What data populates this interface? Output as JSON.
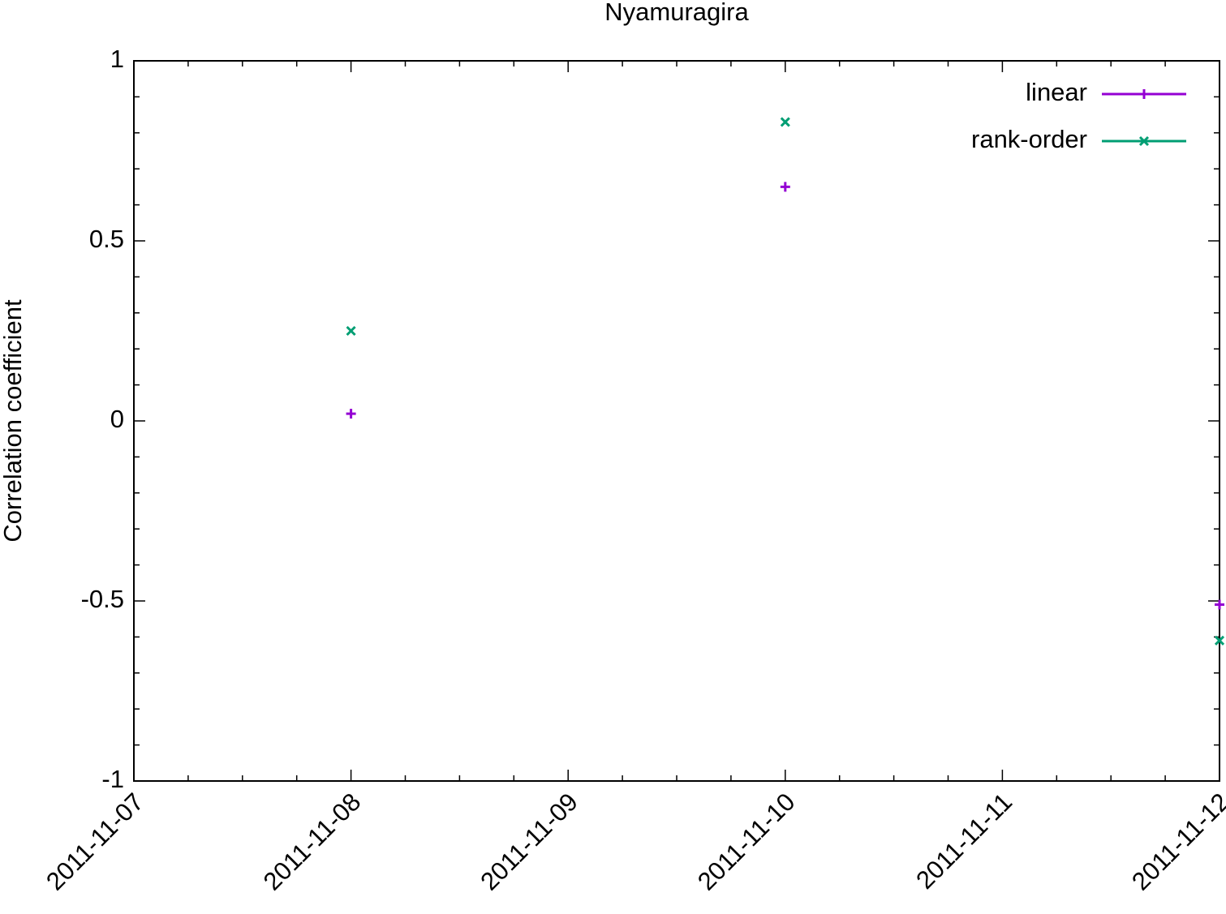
{
  "chart_data": {
    "type": "scatter",
    "title": "Nyamuragira",
    "ylabel": "Correlation coefficient",
    "x": [
      "2011-11-08",
      "2011-11-10",
      "2011-11-12"
    ],
    "series": [
      {
        "name": "linear",
        "color": "#9400d3",
        "marker": "plus",
        "values": [
          0.02,
          0.65,
          -0.51
        ]
      },
      {
        "name": "rank-order",
        "color": "#009e73",
        "marker": "cross",
        "values": [
          0.25,
          0.83,
          -0.61
        ]
      }
    ],
    "xlim": [
      "2011-11-07",
      "2011-11-12"
    ],
    "xticks": [
      "2011-11-07",
      "2011-11-08",
      "2011-11-09",
      "2011-11-10",
      "2011-11-11",
      "2011-11-12"
    ],
    "ylim": [
      -1,
      1
    ],
    "yticks": [
      -1,
      -0.5,
      0,
      0.5,
      1
    ],
    "grid": false,
    "legend": "top-right"
  }
}
